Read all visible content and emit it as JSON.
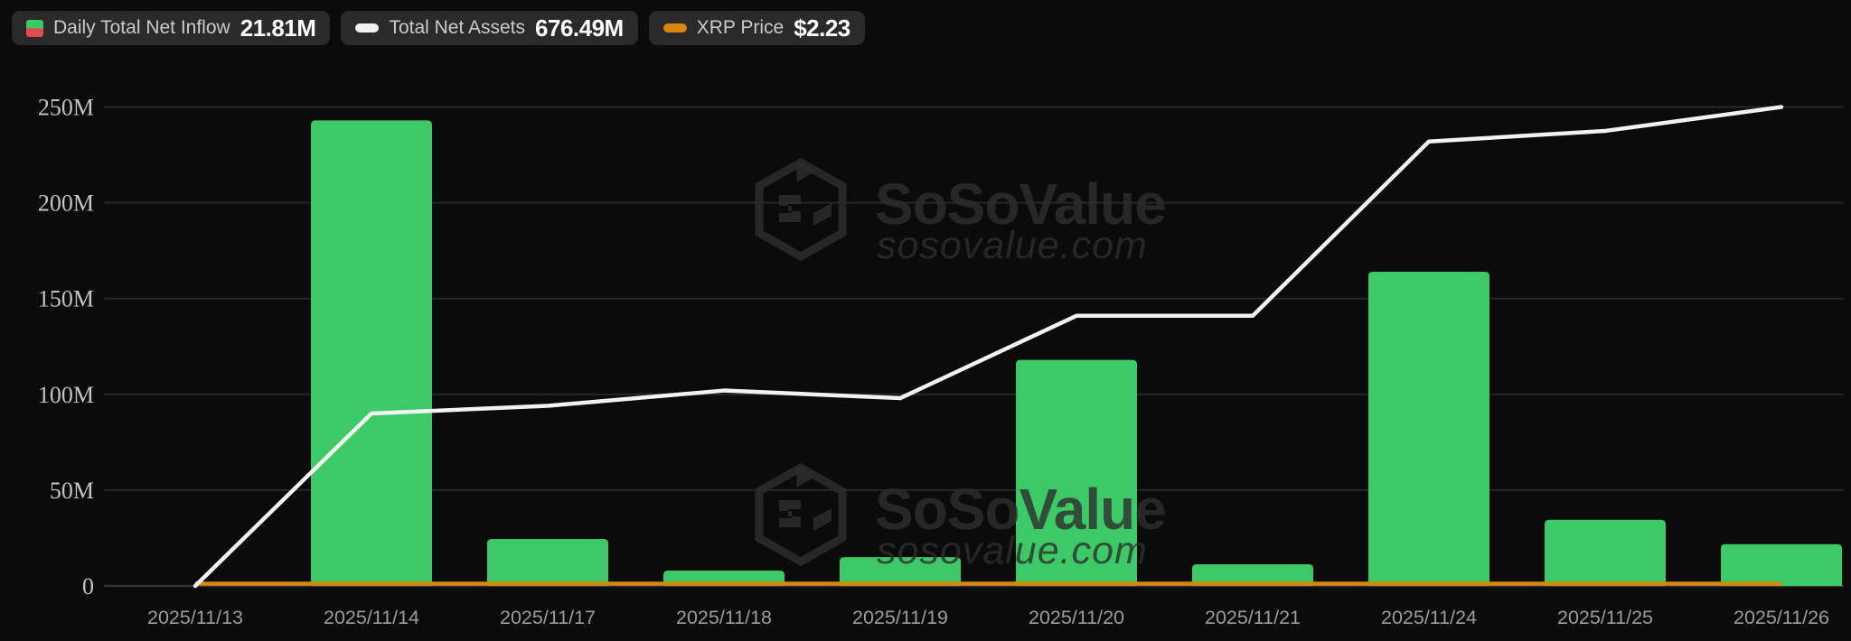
{
  "legend": {
    "items": [
      {
        "id": "daily-total-net-inflow",
        "label": "Daily Total Net Inflow",
        "value": "21.81M",
        "icon": "green-red-split-square"
      },
      {
        "id": "total-net-assets",
        "label": "Total Net Assets",
        "value": "676.49M",
        "icon": "white-dash"
      },
      {
        "id": "xrp-price",
        "label": "XRP Price",
        "value": "$2.23",
        "icon": "orange-dash"
      }
    ]
  },
  "watermark": {
    "brand": "SoSoValue",
    "domain": "sosovalue.com",
    "logo": "cube-logo-icon"
  },
  "colors": {
    "background": "#0B0B0C",
    "panel": "#2A2A2B",
    "grid": "#272727",
    "axis_line": "#343434",
    "y_label": "#C4C4C4",
    "x_label": "#9C9C9C",
    "bar_green": "#3DC967",
    "legend_red": "#E5484D",
    "line_white": "#F2F2F2",
    "xrp_orange": "#D9860D",
    "watermark": "rgba(46,46,46,0.8)"
  },
  "chart_data": {
    "type": "bar+line",
    "title": "",
    "categories": [
      "2025/11/13",
      "2025/11/14",
      "2025/11/17",
      "2025/11/18",
      "2025/11/19",
      "2025/11/20",
      "2025/11/21",
      "2025/11/24",
      "2025/11/25",
      "2025/11/26"
    ],
    "series": [
      {
        "name": "Daily Total Net Inflow",
        "type": "bar",
        "color_key": "bar_green",
        "values": [
          0,
          243,
          24.5,
          8,
          15,
          118,
          11.3,
          164,
          34.5,
          21.81
        ]
      },
      {
        "name": "Total Net Assets",
        "type": "line",
        "color_key": "line_white",
        "values": [
          0,
          90,
          94,
          102,
          98,
          141,
          141,
          232,
          237.5,
          250
        ],
        "latest_shown": "676.49M"
      },
      {
        "name": "XRP Price",
        "type": "line",
        "color_key": "xrp_orange",
        "plotted": "flat-along-zero-baseline",
        "last_value": "$2.23"
      }
    ],
    "ylim": [
      0,
      250
    ],
    "y_ticks": [
      {
        "value": 0,
        "label": "0"
      },
      {
        "value": 50,
        "label": "50M"
      },
      {
        "value": 100,
        "label": "100M"
      },
      {
        "value": 150,
        "label": "150M"
      },
      {
        "value": 200,
        "label": "200M"
      },
      {
        "value": 250,
        "label": "250M"
      }
    ],
    "grid": "horizontal-only",
    "legend_position": "top-left"
  }
}
